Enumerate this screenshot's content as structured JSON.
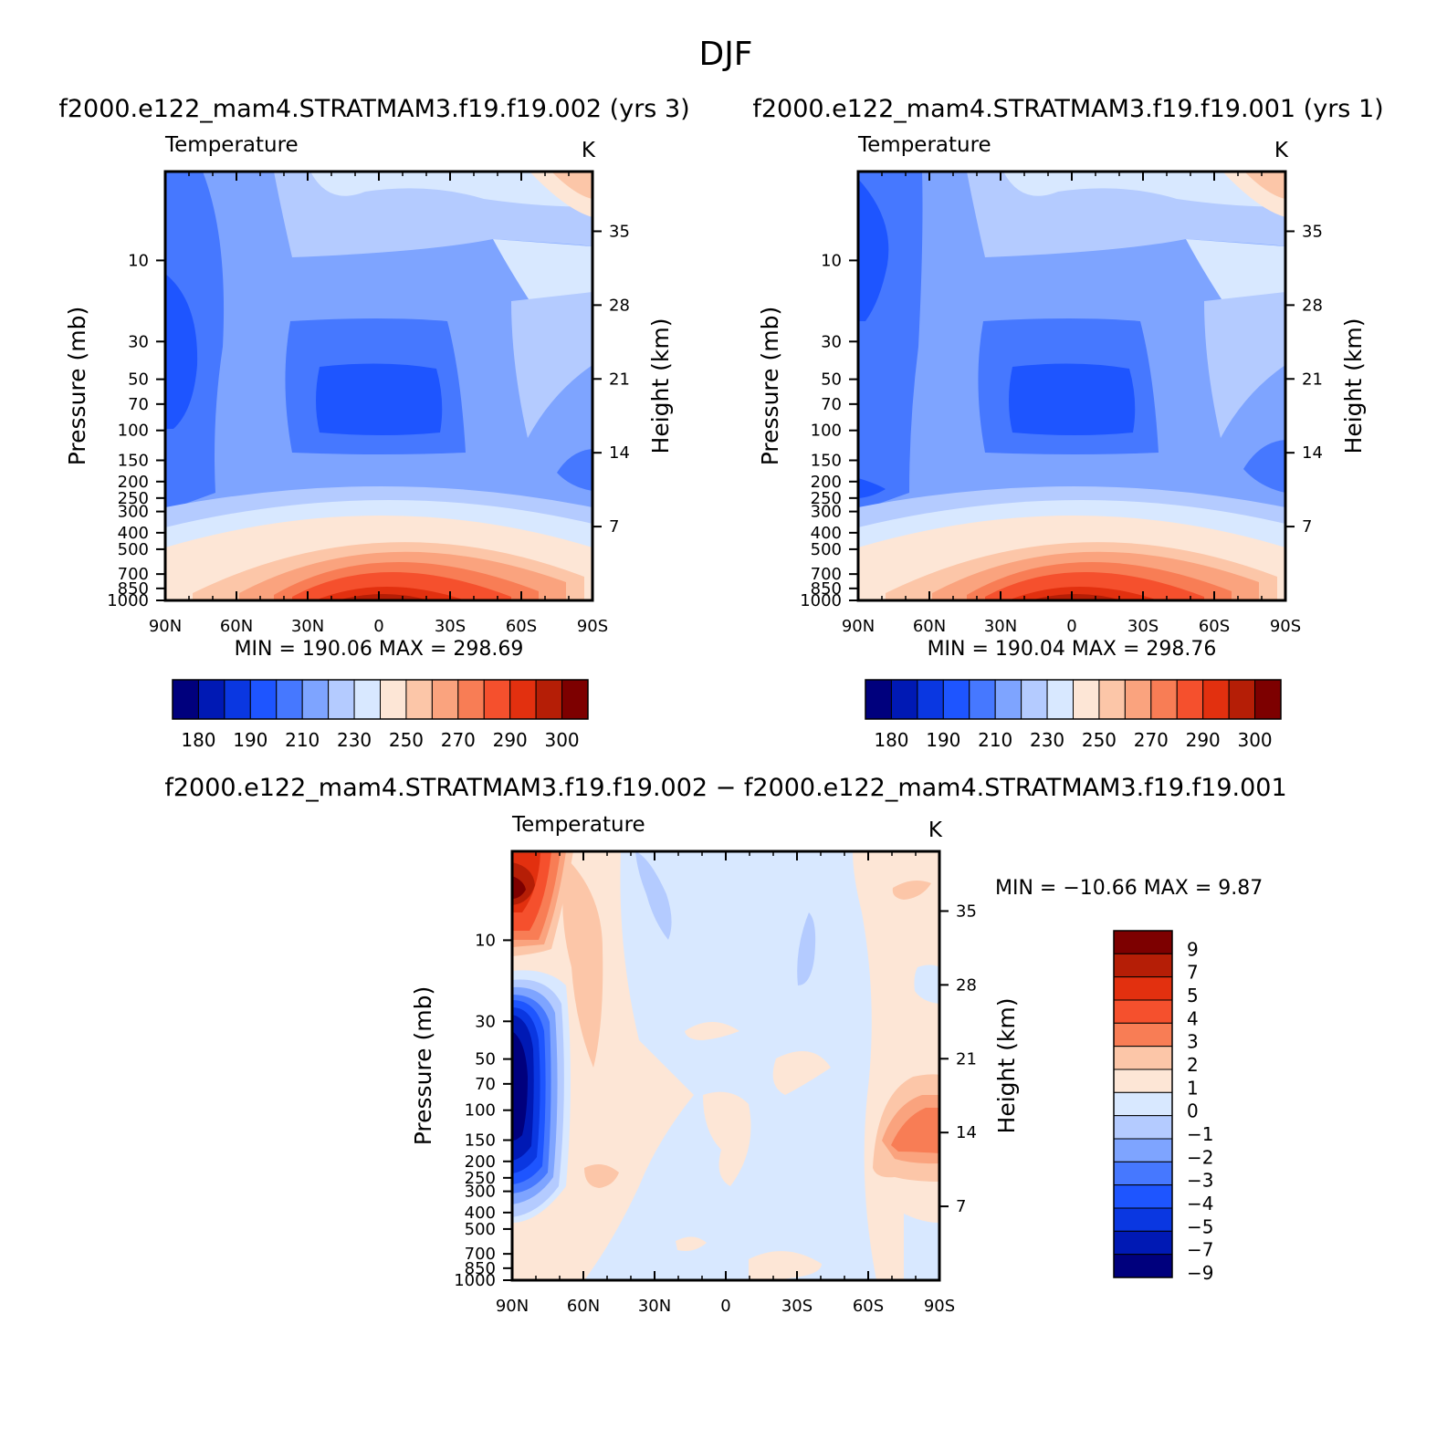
{
  "figure_title": "DJF",
  "panel_titles": [
    "f2000.e122_mam4.STRATMAM3.f19.f19.002  (yrs  3)",
    "f2000.e122_mam4.STRATMAM3.f19.f19.001  (yrs  1)"
  ],
  "diff_title": "f2000.e122_mam4.STRATMAM3.f19.f19.002  −  f2000.e122_mam4.STRATMAM3.f19.f19.001",
  "chart_data": [
    {
      "type": "heatmap",
      "name": "panel-1",
      "title": "f2000.e122_mam4.STRATMAM3.f19.f19.002  (yrs  3)",
      "variable": "Temperature",
      "units": "K",
      "xlabel": "",
      "ylabel": "Pressure  (mb)",
      "ylabel_right": "Height  (km)",
      "x_ticks": [
        "90N",
        "60N",
        "30N",
        "0",
        "30S",
        "60S",
        "90S"
      ],
      "y_ticks": [
        10,
        30,
        50,
        70,
        100,
        150,
        200,
        250,
        300,
        400,
        500,
        700,
        850,
        1000
      ],
      "y_ticks_right": [
        35,
        28,
        21,
        14,
        7
      ],
      "stats": "MIN  =  190.06    MAX  =  298.69",
      "colorbar_labels": [
        "180",
        "190",
        "210",
        "230",
        "250",
        "270",
        "290",
        "300"
      ]
    },
    {
      "type": "heatmap",
      "name": "panel-2",
      "title": "f2000.e122_mam4.STRATMAM3.f19.f19.001  (yrs  1)",
      "variable": "Temperature",
      "units": "K",
      "xlabel": "",
      "ylabel": "Pressure  (mb)",
      "ylabel_right": "Height  (km)",
      "x_ticks": [
        "90N",
        "60N",
        "30N",
        "0",
        "30S",
        "60S",
        "90S"
      ],
      "y_ticks": [
        10,
        30,
        50,
        70,
        100,
        150,
        200,
        250,
        300,
        400,
        500,
        700,
        850,
        1000
      ],
      "y_ticks_right": [
        35,
        28,
        21,
        14,
        7
      ],
      "stats": "MIN  =  190.04    MAX  =  298.76",
      "colorbar_labels": [
        "180",
        "190",
        "210",
        "230",
        "250",
        "270",
        "290",
        "300"
      ]
    },
    {
      "type": "heatmap",
      "name": "difference",
      "title": "f2000.e122_mam4.STRATMAM3.f19.f19.002  −  f2000.e122_mam4.STRATMAM3.f19.f19.001",
      "variable": "Temperature",
      "units": "K",
      "xlabel": "",
      "ylabel": "Pressure  (mb)",
      "ylabel_right": "Height  (km)",
      "x_ticks": [
        "90N",
        "60N",
        "30N",
        "0",
        "30S",
        "60S",
        "90S"
      ],
      "y_ticks": [
        10,
        30,
        50,
        70,
        100,
        150,
        200,
        250,
        300,
        400,
        500,
        700,
        850,
        1000
      ],
      "y_ticks_right": [
        35,
        28,
        21,
        14,
        7
      ],
      "stats": "MIN  =  −10.66    MAX  =      9.87",
      "colorbar_labels": [
        "9",
        "7",
        "5",
        "4",
        "3",
        "2",
        "1",
        "0",
        "−1",
        "−2",
        "−3",
        "−4",
        "−5",
        "−7",
        "−9"
      ]
    }
  ],
  "colors": {
    "main_scale": [
      "#00007d",
      "#0019b4",
      "#0a37e1",
      "#1e55ff",
      "#4678ff",
      "#7ea4ff",
      "#b4cbff",
      "#d8e8ff",
      "#fde6d6",
      "#fcc6a8",
      "#faa37e",
      "#f87d55",
      "#f5502d",
      "#e2300f",
      "#b51e06",
      "#7d0000"
    ],
    "diff_scale": [
      "#7d0000",
      "#b51e06",
      "#e2300f",
      "#f5502d",
      "#f87d55",
      "#fcc6a8",
      "#fde6d6",
      "#d8e8ff",
      "#b4cbff",
      "#7ea4ff",
      "#4678ff",
      "#1e55ff",
      "#0a37e1",
      "#0019b4",
      "#00007d"
    ]
  }
}
